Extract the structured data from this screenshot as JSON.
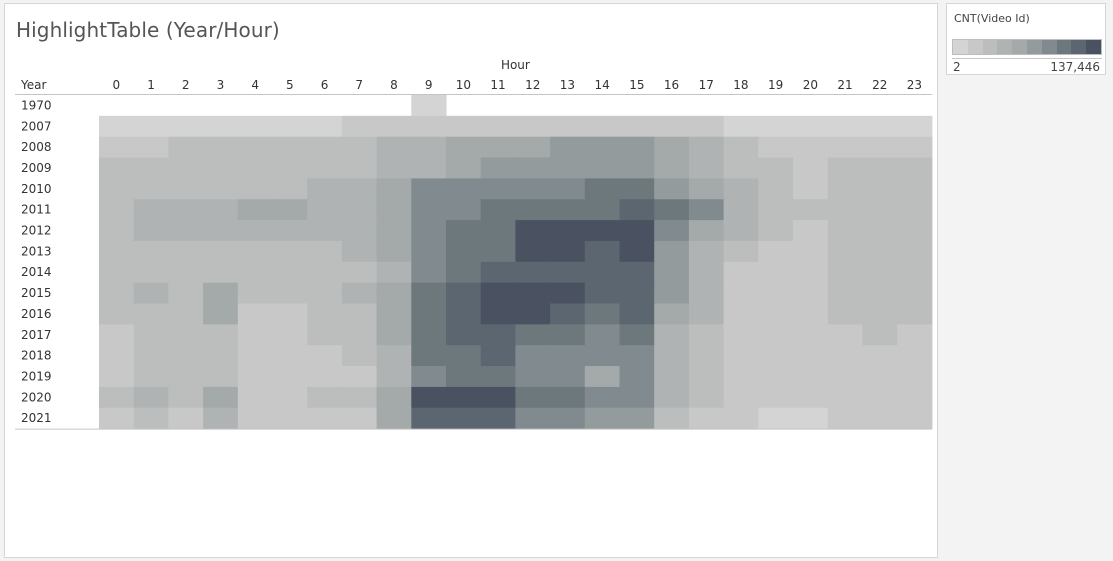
{
  "chart_data": {
    "type": "heatmap",
    "title": "HighlightTable (Year/Hour)",
    "column_header": "Hour",
    "row_header": "Year",
    "x": [
      "0",
      "1",
      "2",
      "3",
      "4",
      "5",
      "6",
      "7",
      "8",
      "9",
      "10",
      "11",
      "12",
      "13",
      "14",
      "15",
      "16",
      "17",
      "18",
      "19",
      "20",
      "21",
      "22",
      "23"
    ],
    "y": [
      "1970",
      "2007",
      "2008",
      "2009",
      "2010",
      "2011",
      "2012",
      "2013",
      "2014",
      "2015",
      "2016",
      "2017",
      "2018",
      "2019",
      "2020",
      "2021"
    ],
    "value_scale": "shade index 0 (lightest, empty) to 10 (darkest)",
    "values": [
      [
        0,
        0,
        0,
        0,
        0,
        0,
        0,
        0,
        0,
        1,
        0,
        0,
        0,
        0,
        0,
        0,
        0,
        0,
        0,
        0,
        0,
        0,
        0,
        0
      ],
      [
        1,
        1,
        1,
        1,
        1,
        1,
        1,
        2,
        2,
        2,
        2,
        2,
        2,
        2,
        2,
        2,
        2,
        2,
        1,
        1,
        1,
        1,
        1,
        1
      ],
      [
        2,
        2,
        3,
        3,
        3,
        3,
        3,
        3,
        4,
        4,
        5,
        5,
        5,
        6,
        6,
        6,
        5,
        4,
        3,
        2,
        2,
        2,
        2,
        2
      ],
      [
        3,
        3,
        3,
        3,
        3,
        3,
        3,
        3,
        4,
        4,
        5,
        6,
        6,
        6,
        6,
        6,
        5,
        4,
        3,
        3,
        2,
        3,
        3,
        3
      ],
      [
        3,
        3,
        3,
        3,
        3,
        3,
        4,
        4,
        5,
        7,
        7,
        7,
        7,
        7,
        8,
        8,
        6,
        5,
        4,
        3,
        2,
        3,
        3,
        3
      ],
      [
        3,
        4,
        4,
        4,
        5,
        5,
        4,
        4,
        5,
        7,
        7,
        8,
        8,
        8,
        8,
        9,
        8,
        7,
        4,
        3,
        3,
        3,
        3,
        3
      ],
      [
        3,
        4,
        4,
        4,
        4,
        4,
        4,
        4,
        5,
        7,
        8,
        8,
        10,
        10,
        10,
        10,
        7,
        5,
        4,
        3,
        2,
        3,
        3,
        3
      ],
      [
        3,
        3,
        3,
        3,
        3,
        3,
        3,
        4,
        5,
        7,
        8,
        8,
        10,
        10,
        9,
        10,
        6,
        4,
        3,
        2,
        2,
        3,
        3,
        3
      ],
      [
        3,
        3,
        3,
        3,
        3,
        3,
        3,
        3,
        4,
        7,
        8,
        9,
        9,
        9,
        9,
        9,
        6,
        4,
        2,
        2,
        2,
        3,
        3,
        3
      ],
      [
        3,
        4,
        3,
        5,
        3,
        3,
        3,
        4,
        5,
        8,
        9,
        10,
        10,
        10,
        9,
        9,
        6,
        4,
        2,
        2,
        2,
        3,
        3,
        3
      ],
      [
        3,
        3,
        3,
        5,
        2,
        2,
        3,
        3,
        5,
        8,
        9,
        10,
        10,
        9,
        8,
        9,
        5,
        4,
        2,
        2,
        2,
        3,
        3,
        3
      ],
      [
        2,
        3,
        3,
        3,
        2,
        2,
        3,
        3,
        5,
        8,
        9,
        9,
        8,
        8,
        7,
        8,
        4,
        3,
        2,
        2,
        2,
        2,
        3,
        2
      ],
      [
        2,
        3,
        3,
        3,
        2,
        2,
        2,
        3,
        4,
        8,
        8,
        9,
        7,
        7,
        7,
        7,
        4,
        3,
        2,
        2,
        2,
        2,
        2,
        2
      ],
      [
        2,
        3,
        3,
        3,
        2,
        2,
        2,
        2,
        4,
        7,
        8,
        8,
        7,
        7,
        5,
        7,
        4,
        3,
        2,
        2,
        2,
        2,
        2,
        2
      ],
      [
        3,
        4,
        3,
        5,
        2,
        2,
        3,
        3,
        5,
        10,
        10,
        10,
        8,
        8,
        7,
        7,
        4,
        3,
        2,
        2,
        2,
        2,
        2,
        2
      ],
      [
        2,
        3,
        2,
        4,
        2,
        2,
        2,
        2,
        5,
        9,
        9,
        9,
        7,
        7,
        6,
        6,
        3,
        2,
        2,
        1,
        1,
        2,
        2,
        2
      ]
    ],
    "color_legend": {
      "title": "CNT(Video Id)",
      "min_label": "2",
      "max_label": "137,446",
      "colors": [
        "#ffffff",
        "#d4d4d4",
        "#c8c8c8",
        "#bcbebe",
        "#b0b3b3",
        "#a4a9aa",
        "#939b9c",
        "#818b8f",
        "#6d787d",
        "#5c6670",
        "#4a5261"
      ]
    }
  }
}
